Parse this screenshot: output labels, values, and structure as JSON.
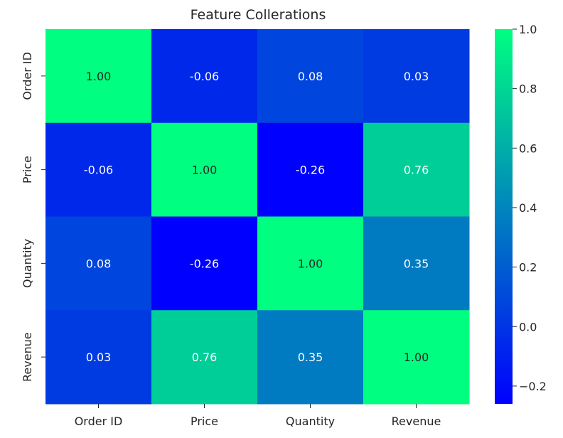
{
  "chart_data": {
    "type": "heatmap",
    "title": "Feature Collerations",
    "rows": [
      "Order ID",
      "Price",
      "Quantity",
      "Revenue"
    ],
    "columns": [
      "Order ID",
      "Price",
      "Quantity",
      "Revenue"
    ],
    "values": [
      [
        1.0,
        -0.06,
        0.08,
        0.03
      ],
      [
        -0.06,
        1.0,
        -0.26,
        0.76
      ],
      [
        0.08,
        -0.26,
        1.0,
        0.35
      ],
      [
        0.03,
        0.76,
        0.35,
        1.0
      ]
    ],
    "annotations": [
      [
        "1.00",
        "-0.06",
        "0.08",
        "0.03"
      ],
      [
        "-0.06",
        "1.00",
        "-0.26",
        "0.76"
      ],
      [
        "0.08",
        "-0.26",
        "1.00",
        "0.35"
      ],
      [
        "0.03",
        "0.76",
        "0.35",
        "1.00"
      ]
    ],
    "colormap": "winter",
    "colormap_low": "#0000ff",
    "colormap_high": "#00ff80",
    "vmin": -0.26,
    "vmax": 1.0,
    "colorbar": {
      "ticks": [
        -0.2,
        0.0,
        0.2,
        0.4,
        0.6,
        0.8,
        1.0
      ],
      "tick_labels": [
        "−0.2",
        "0.0",
        "0.2",
        "0.4",
        "0.6",
        "0.8",
        "1.0"
      ]
    },
    "grid": false,
    "legend": "colorbar-right"
  }
}
